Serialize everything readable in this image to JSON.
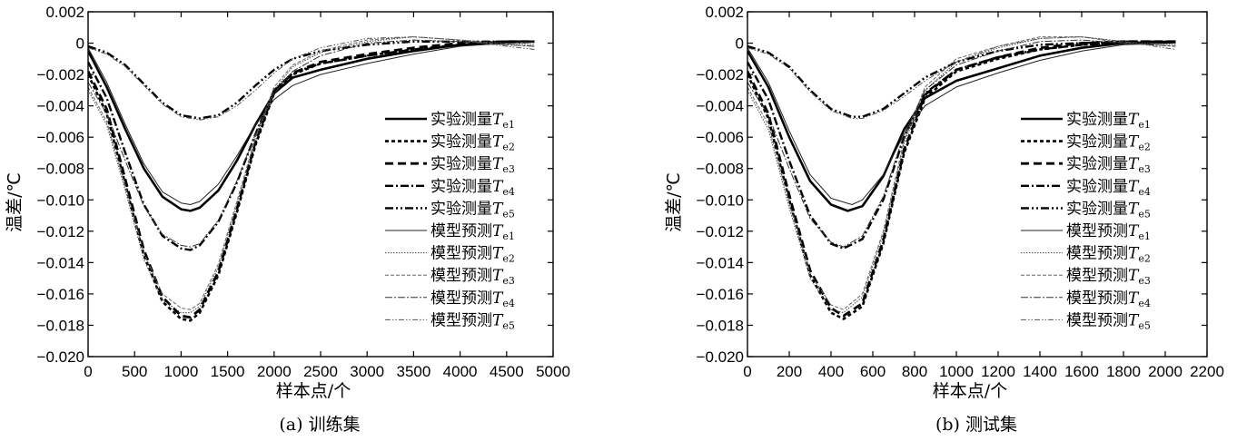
{
  "chart_data": [
    {
      "type": "line",
      "title": "",
      "caption": "(a) 训练集",
      "xlabel": "样本点/个",
      "ylabel": "温差/℃",
      "xlim": [
        0,
        5000
      ],
      "ylim": [
        -0.02,
        0.002
      ],
      "xticks": [
        "0",
        "500",
        "1000",
        "1500",
        "2000",
        "2500",
        "3000",
        "3500",
        "4000",
        "4500",
        "5000"
      ],
      "yticks": [
        "0.002",
        "0",
        "−0.002",
        "−0.004",
        "−0.006",
        "−0.008",
        "−0.010",
        "−0.012",
        "−0.014",
        "−0.016",
        "−0.018",
        "−0.020"
      ],
      "legend_position": "right",
      "legend": [
        {
          "text": "实验测量",
          "sym": "T",
          "sub": "e1"
        },
        {
          "text": "实验测量",
          "sym": "T",
          "sub": "e2"
        },
        {
          "text": "实验测量",
          "sym": "T",
          "sub": "e3"
        },
        {
          "text": "实验测量",
          "sym": "T",
          "sub": "e4"
        },
        {
          "text": "实验测量",
          "sym": "T",
          "sub": "e5"
        },
        {
          "text": "模型预测",
          "sym": "T",
          "sub": "e1"
        },
        {
          "text": "模型预测",
          "sym": "T",
          "sub": "e2"
        },
        {
          "text": "模型预测",
          "sym": "T",
          "sub": "e3"
        },
        {
          "text": "模型预测",
          "sym": "T",
          "sub": "e4"
        },
        {
          "text": "模型预测",
          "sym": "T",
          "sub": "e5"
        }
      ],
      "series": [
        {
          "name": "实验测量Te1",
          "x": [
            0,
            200,
            400,
            600,
            800,
            1000,
            1100,
            1200,
            1400,
            1600,
            1800,
            2000,
            2200,
            2500,
            3000,
            3500,
            4000,
            4500,
            4800
          ],
          "y": [
            -0.0005,
            -0.0028,
            -0.0055,
            -0.008,
            -0.0098,
            -0.0106,
            -0.0107,
            -0.0105,
            -0.0094,
            -0.0075,
            -0.0052,
            -0.0032,
            -0.0022,
            -0.0017,
            -0.001,
            -0.0005,
            -0.0001,
            0.0001,
            0.0001
          ]
        },
        {
          "name": "实验测量Te2",
          "x": [
            0,
            200,
            400,
            600,
            800,
            1000,
            1100,
            1200,
            1400,
            1600,
            1800,
            2000,
            2200,
            2500,
            3000,
            3500,
            4000,
            4500,
            4800
          ],
          "y": [
            -0.002,
            -0.0045,
            -0.009,
            -0.0135,
            -0.0165,
            -0.0176,
            -0.0177,
            -0.0172,
            -0.0148,
            -0.0108,
            -0.0065,
            -0.0032,
            -0.002,
            -0.0013,
            -0.0008,
            -0.0004,
            -0.0001,
            0.0001,
            0.0001
          ]
        },
        {
          "name": "实验测量Te3",
          "x": [
            0,
            200,
            400,
            600,
            800,
            1000,
            1100,
            1200,
            1400,
            1600,
            1800,
            2000,
            2200,
            2500,
            3000,
            3500,
            4000,
            4500,
            4800
          ],
          "y": [
            -0.0018,
            -0.0042,
            -0.0087,
            -0.0132,
            -0.0162,
            -0.0174,
            -0.0175,
            -0.017,
            -0.0146,
            -0.0106,
            -0.0063,
            -0.0031,
            -0.0019,
            -0.0012,
            -0.0007,
            -0.0003,
            0.0,
            0.0001,
            0.0001
          ]
        },
        {
          "name": "实验测量Te4",
          "x": [
            0,
            200,
            400,
            600,
            800,
            1000,
            1100,
            1200,
            1400,
            1600,
            1800,
            2000,
            2200,
            2500,
            3000,
            3500,
            4000,
            4500,
            4800
          ],
          "y": [
            -0.0012,
            -0.0035,
            -0.007,
            -0.0103,
            -0.0123,
            -0.0131,
            -0.0132,
            -0.0129,
            -0.0114,
            -0.0089,
            -0.0058,
            -0.003,
            -0.0019,
            -0.0013,
            -0.0008,
            -0.0004,
            -0.0001,
            0.0,
            0.0001
          ]
        },
        {
          "name": "实验测量Te5",
          "x": [
            0,
            200,
            400,
            600,
            800,
            1000,
            1200,
            1400,
            1600,
            1800,
            2000,
            2200,
            2500,
            3000,
            3500,
            4000,
            4500,
            4800
          ],
          "y": [
            -0.0002,
            -0.0006,
            -0.0014,
            -0.0026,
            -0.0038,
            -0.0046,
            -0.0048,
            -0.0046,
            -0.0038,
            -0.0027,
            -0.0017,
            -0.001,
            -0.0005,
            -0.0001,
            0.0001,
            0.0001,
            0.0001,
            0.0001
          ]
        },
        {
          "name": "模型预测Te1",
          "x": [
            0,
            200,
            400,
            600,
            800,
            1000,
            1100,
            1200,
            1400,
            1600,
            1800,
            2000,
            2200,
            2500,
            3000,
            3500,
            4000,
            4500,
            4800
          ],
          "y": [
            -0.0003,
            -0.0025,
            -0.0052,
            -0.0077,
            -0.0095,
            -0.0102,
            -0.0103,
            -0.0101,
            -0.009,
            -0.0072,
            -0.0052,
            -0.0036,
            -0.0027,
            -0.002,
            -0.0013,
            -0.0007,
            -0.0002,
            0.0,
            0.0001
          ]
        },
        {
          "name": "模型预测Te2",
          "x": [
            0,
            200,
            400,
            600,
            800,
            1000,
            1100,
            1200,
            1400,
            1600,
            1800,
            2000,
            2200,
            2500,
            3000,
            3500,
            4000,
            4500,
            4800
          ],
          "y": [
            -0.003,
            -0.0052,
            -0.0094,
            -0.0138,
            -0.0164,
            -0.0172,
            -0.0172,
            -0.0168,
            -0.0143,
            -0.0103,
            -0.0062,
            -0.003,
            -0.0015,
            -0.0006,
            0.0001,
            0.0004,
            0.0002,
            0.0,
            -0.0001
          ]
        },
        {
          "name": "模型预测Te3",
          "x": [
            0,
            200,
            400,
            600,
            800,
            1000,
            1100,
            1200,
            1400,
            1600,
            1800,
            2000,
            2200,
            2500,
            3000,
            3500,
            4000,
            4500,
            4800
          ],
          "y": [
            -0.0028,
            -0.005,
            -0.0091,
            -0.0134,
            -0.016,
            -0.0169,
            -0.017,
            -0.0166,
            -0.0141,
            -0.0101,
            -0.006,
            -0.0028,
            -0.0014,
            -0.0005,
            0.0002,
            0.0004,
            0.0002,
            -0.0001,
            -0.0002
          ]
        },
        {
          "name": "模型预测Te4",
          "x": [
            0,
            200,
            400,
            600,
            800,
            1000,
            1100,
            1200,
            1400,
            1600,
            1800,
            2000,
            2200,
            2500,
            3000,
            3500,
            4000,
            4500,
            4800
          ],
          "y": [
            -0.0025,
            -0.0045,
            -0.0075,
            -0.0104,
            -0.0122,
            -0.0129,
            -0.013,
            -0.0128,
            -0.0113,
            -0.0088,
            -0.0058,
            -0.0032,
            -0.0018,
            -0.0008,
            0.0,
            0.0002,
            0.0001,
            -0.0001,
            -0.0002
          ]
        },
        {
          "name": "模型预测Te5",
          "x": [
            0,
            200,
            400,
            600,
            800,
            1000,
            1200,
            1400,
            1600,
            1800,
            2000,
            2200,
            2500,
            3000,
            3500,
            4000,
            4500,
            4800
          ],
          "y": [
            -0.0003,
            -0.0007,
            -0.0015,
            -0.0027,
            -0.0039,
            -0.0047,
            -0.0049,
            -0.0047,
            -0.004,
            -0.003,
            -0.0019,
            -0.001,
            -0.0003,
            0.0003,
            0.0004,
            0.0002,
            -0.0002,
            -0.0004
          ]
        }
      ]
    },
    {
      "type": "line",
      "title": "",
      "caption": "(b) 测试集",
      "xlabel": "样本点/个",
      "ylabel": "温差/℃",
      "xlim": [
        0,
        2200
      ],
      "ylim": [
        -0.02,
        0.002
      ],
      "xticks": [
        "0",
        "200",
        "400",
        "600",
        "800",
        "1000",
        "1200",
        "1400",
        "1600",
        "1800",
        "2000",
        "2200"
      ],
      "yticks": [
        "0.002",
        "0",
        "−0.002",
        "−0.004",
        "−0.006",
        "−0.008",
        "−0.010",
        "−0.012",
        "−0.014",
        "−0.016",
        "−0.018",
        "−0.020"
      ],
      "legend_position": "right",
      "legend": [
        {
          "text": "实验测量",
          "sym": "T",
          "sub": "e1"
        },
        {
          "text": "实验测量",
          "sym": "T",
          "sub": "e2"
        },
        {
          "text": "实验测量",
          "sym": "T",
          "sub": "e3"
        },
        {
          "text": "实验测量",
          "sym": "T",
          "sub": "e4"
        },
        {
          "text": "实验测量",
          "sym": "T",
          "sub": "e5"
        },
        {
          "text": "模型预测",
          "sym": "T",
          "sub": "e1"
        },
        {
          "text": "模型预测",
          "sym": "T",
          "sub": "e2"
        },
        {
          "text": "模型预测",
          "sym": "T",
          "sub": "e3"
        },
        {
          "text": "模型预测",
          "sym": "T",
          "sub": "e4"
        },
        {
          "text": "模型预测",
          "sym": "T",
          "sub": "e5"
        }
      ],
      "series": [
        {
          "name": "实验测量Te1",
          "x": [
            0,
            100,
            200,
            300,
            400,
            480,
            550,
            650,
            750,
            850,
            1000,
            1200,
            1400,
            1600,
            1800,
            2050
          ],
          "y": [
            -0.0005,
            -0.0028,
            -0.006,
            -0.0088,
            -0.0103,
            -0.0107,
            -0.0104,
            -0.0085,
            -0.0055,
            -0.0035,
            -0.0024,
            -0.0016,
            -0.0008,
            -0.0003,
            0.0,
            0.0001
          ]
        },
        {
          "name": "实验测量Te2",
          "x": [
            0,
            100,
            200,
            300,
            400,
            460,
            550,
            650,
            750,
            850,
            1000,
            1200,
            1400,
            1600,
            1800,
            2050
          ],
          "y": [
            -0.002,
            -0.0048,
            -0.01,
            -0.0148,
            -0.0172,
            -0.0176,
            -0.0168,
            -0.0128,
            -0.007,
            -0.0035,
            -0.0018,
            -0.001,
            -0.0004,
            -0.0001,
            0.0001,
            0.0001
          ]
        },
        {
          "name": "实验测量Te3",
          "x": [
            0,
            100,
            200,
            300,
            400,
            460,
            550,
            650,
            750,
            850,
            1000,
            1200,
            1400,
            1600,
            1800,
            2050
          ],
          "y": [
            -0.0018,
            -0.0045,
            -0.0097,
            -0.0145,
            -0.0169,
            -0.0174,
            -0.0166,
            -0.0126,
            -0.0068,
            -0.0033,
            -0.0017,
            -0.0009,
            -0.0003,
            0.0,
            0.0001,
            0.0001
          ]
        },
        {
          "name": "实验测量Te4",
          "x": [
            0,
            100,
            200,
            300,
            400,
            460,
            550,
            650,
            750,
            850,
            1000,
            1200,
            1400,
            1600,
            1800,
            2050
          ],
          "y": [
            -0.0012,
            -0.0036,
            -0.0075,
            -0.011,
            -0.0128,
            -0.0131,
            -0.0125,
            -0.01,
            -0.006,
            -0.0032,
            -0.0017,
            -0.0009,
            -0.0004,
            -0.0001,
            0.0,
            0.0001
          ]
        },
        {
          "name": "实验测量Te5",
          "x": [
            0,
            100,
            200,
            300,
            400,
            500,
            550,
            650,
            750,
            850,
            1000,
            1200,
            1400,
            1600,
            1800,
            2050
          ],
          "y": [
            -0.0002,
            -0.0006,
            -0.0015,
            -0.003,
            -0.0042,
            -0.0047,
            -0.0047,
            -0.0042,
            -0.0032,
            -0.0022,
            -0.0012,
            -0.0005,
            -0.0001,
            0.0,
            0.0001,
            0.0001
          ]
        },
        {
          "name": "模型预测Te1",
          "x": [
            0,
            100,
            200,
            300,
            400,
            500,
            550,
            650,
            750,
            850,
            1000,
            1200,
            1400,
            1600,
            1800,
            2050
          ],
          "y": [
            -0.0003,
            -0.0025,
            -0.0056,
            -0.0084,
            -0.0099,
            -0.0103,
            -0.01,
            -0.0084,
            -0.0058,
            -0.004,
            -0.0028,
            -0.0019,
            -0.0011,
            -0.0005,
            -0.0001,
            0.0
          ]
        },
        {
          "name": "模型预测Te2",
          "x": [
            0,
            100,
            200,
            300,
            400,
            460,
            550,
            650,
            750,
            850,
            1000,
            1200,
            1400,
            1600,
            1800,
            2050
          ],
          "y": [
            -0.003,
            -0.0055,
            -0.0105,
            -0.015,
            -0.017,
            -0.0172,
            -0.0162,
            -0.0122,
            -0.0064,
            -0.003,
            -0.0012,
            -0.0003,
            0.0003,
            0.0004,
            0.0001,
            -0.0001
          ]
        },
        {
          "name": "模型预测Te3",
          "x": [
            0,
            100,
            200,
            300,
            400,
            460,
            550,
            650,
            750,
            850,
            1000,
            1200,
            1400,
            1600,
            1800,
            2050
          ],
          "y": [
            -0.0028,
            -0.0052,
            -0.0102,
            -0.0147,
            -0.0167,
            -0.017,
            -0.016,
            -0.012,
            -0.0062,
            -0.0028,
            -0.001,
            -0.0002,
            0.0004,
            0.0004,
            0.0,
            -0.0002
          ]
        },
        {
          "name": "模型预测Te4",
          "x": [
            0,
            100,
            200,
            300,
            400,
            460,
            550,
            650,
            750,
            850,
            1000,
            1200,
            1400,
            1600,
            1800,
            2050
          ],
          "y": [
            -0.0025,
            -0.0046,
            -0.008,
            -0.0112,
            -0.0127,
            -0.013,
            -0.0123,
            -0.0098,
            -0.0058,
            -0.003,
            -0.0014,
            -0.0005,
            0.0001,
            0.0002,
            0.0,
            -0.0002
          ]
        },
        {
          "name": "模型预测Te5",
          "x": [
            0,
            100,
            200,
            300,
            400,
            500,
            550,
            650,
            750,
            850,
            1000,
            1200,
            1400,
            1600,
            1800,
            2050
          ],
          "y": [
            -0.0003,
            -0.0007,
            -0.0016,
            -0.0031,
            -0.0043,
            -0.0048,
            -0.0048,
            -0.0043,
            -0.0034,
            -0.0024,
            -0.0012,
            -0.0002,
            0.0003,
            0.0004,
            0.0001,
            -0.0004
          ]
        }
      ]
    }
  ]
}
